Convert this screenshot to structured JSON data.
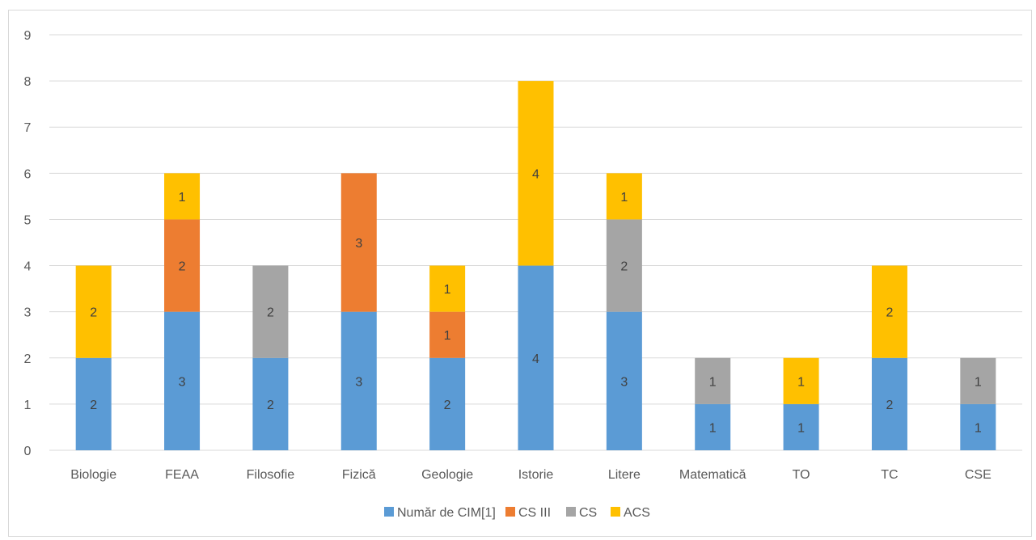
{
  "chart_data": {
    "type": "bar",
    "stacked": true,
    "categories": [
      "Biologie",
      "FEAA",
      "Filosofie",
      "Fizică",
      "Geologie",
      "Istorie",
      "Litere",
      "Matematică",
      "TO",
      "TC",
      "CSE"
    ],
    "series": [
      {
        "name": "Număr de CIM[1]",
        "color": "#5b9bd5",
        "values": [
          2,
          3,
          2,
          3,
          2,
          4,
          3,
          1,
          1,
          2,
          1
        ]
      },
      {
        "name": "CS III",
        "color": "#ed7d31",
        "values": [
          0,
          2,
          0,
          3,
          1,
          0,
          0,
          0,
          0,
          0,
          0
        ]
      },
      {
        "name": "CS",
        "color": "#a5a5a5",
        "values": [
          0,
          0,
          2,
          0,
          0,
          0,
          2,
          1,
          0,
          0,
          1
        ]
      },
      {
        "name": "ACS",
        "color": "#ffc000",
        "values": [
          2,
          1,
          0,
          0,
          1,
          4,
          1,
          0,
          1,
          2,
          0
        ]
      }
    ],
    "ylim": [
      0,
      9
    ],
    "yticks": [
      "0",
      "1",
      "2",
      "3",
      "4",
      "5",
      "6",
      "7",
      "8",
      "9"
    ],
    "grid": true,
    "legend_position": "bottom"
  }
}
